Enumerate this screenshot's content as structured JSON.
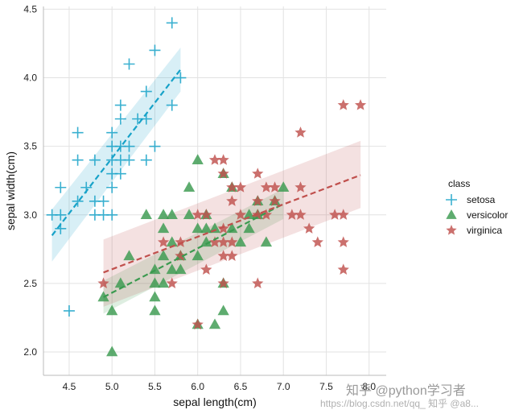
{
  "chart_data": {
    "type": "scatter",
    "xlabel": "sepal length(cm)",
    "ylabel": "sepal width(cm)",
    "xlim": [
      4.2,
      8.2
    ],
    "ylim": [
      1.83,
      4.52
    ],
    "xticks": [
      "4.5",
      "5.0",
      "5.5",
      "6.0",
      "6.5",
      "7.0",
      "7.5",
      "8.0"
    ],
    "yticks": [
      "2.0",
      "2.5",
      "3.0",
      "3.5",
      "4.0",
      "4.5"
    ],
    "grid": true,
    "legend": {
      "title": "class",
      "placement": "right"
    },
    "series": [
      {
        "name": "setosa",
        "marker": "plus",
        "color": "#17a2c8",
        "regression": {
          "x": [
            4.3,
            5.8
          ],
          "y": [
            2.85,
            4.06
          ],
          "ci_low": [
            2.66,
            3.9
          ],
          "ci_high": [
            3.04,
            4.22
          ]
        },
        "points": [
          [
            4.3,
            3.0
          ],
          [
            4.4,
            2.9
          ],
          [
            4.4,
            3.0
          ],
          [
            4.4,
            3.2
          ],
          [
            4.5,
            2.3
          ],
          [
            4.6,
            3.1
          ],
          [
            4.6,
            3.4
          ],
          [
            4.6,
            3.6
          ],
          [
            4.7,
            3.2
          ],
          [
            4.8,
            3.0
          ],
          [
            4.8,
            3.1
          ],
          [
            4.8,
            3.4
          ],
          [
            4.9,
            3.0
          ],
          [
            4.9,
            3.1
          ],
          [
            5.0,
            3.0
          ],
          [
            5.0,
            3.2
          ],
          [
            5.0,
            3.3
          ],
          [
            5.0,
            3.4
          ],
          [
            5.0,
            3.5
          ],
          [
            5.0,
            3.6
          ],
          [
            5.1,
            3.3
          ],
          [
            5.1,
            3.4
          ],
          [
            5.1,
            3.5
          ],
          [
            5.1,
            3.7
          ],
          [
            5.1,
            3.8
          ],
          [
            5.2,
            3.4
          ],
          [
            5.2,
            3.5
          ],
          [
            5.2,
            4.1
          ],
          [
            5.3,
            3.7
          ],
          [
            5.4,
            3.4
          ],
          [
            5.4,
            3.7
          ],
          [
            5.4,
            3.9
          ],
          [
            5.5,
            3.5
          ],
          [
            5.5,
            4.2
          ],
          [
            5.7,
            3.8
          ],
          [
            5.7,
            4.4
          ],
          [
            5.8,
            4.0
          ]
        ]
      },
      {
        "name": "versicolor",
        "marker": "triangle",
        "color": "#3a9a4f",
        "regression": {
          "x": [
            4.9,
            7.0
          ],
          "y": [
            2.4,
            3.08
          ],
          "ci_low": [
            2.28,
            2.97
          ],
          "ci_high": [
            2.52,
            3.19
          ]
        },
        "points": [
          [
            4.9,
            2.4
          ],
          [
            5.0,
            2.0
          ],
          [
            5.0,
            2.3
          ],
          [
            5.1,
            2.5
          ],
          [
            5.2,
            2.7
          ],
          [
            5.4,
            3.0
          ],
          [
            5.5,
            2.3
          ],
          [
            5.5,
            2.4
          ],
          [
            5.5,
            2.5
          ],
          [
            5.5,
            2.6
          ],
          [
            5.6,
            2.5
          ],
          [
            5.6,
            2.7
          ],
          [
            5.6,
            2.9
          ],
          [
            5.6,
            3.0
          ],
          [
            5.7,
            2.6
          ],
          [
            5.7,
            2.8
          ],
          [
            5.7,
            3.0
          ],
          [
            5.8,
            2.6
          ],
          [
            5.8,
            2.7
          ],
          [
            5.9,
            3.0
          ],
          [
            5.9,
            3.2
          ],
          [
            6.0,
            2.2
          ],
          [
            6.0,
            2.7
          ],
          [
            6.0,
            2.9
          ],
          [
            6.0,
            3.4
          ],
          [
            6.1,
            2.8
          ],
          [
            6.1,
            2.9
          ],
          [
            6.1,
            3.0
          ],
          [
            6.2,
            2.2
          ],
          [
            6.2,
            2.9
          ],
          [
            6.3,
            2.3
          ],
          [
            6.3,
            2.5
          ],
          [
            6.3,
            3.3
          ],
          [
            6.4,
            2.9
          ],
          [
            6.4,
            3.2
          ],
          [
            6.5,
            2.8
          ],
          [
            6.6,
            2.9
          ],
          [
            6.6,
            3.0
          ],
          [
            6.7,
            3.0
          ],
          [
            6.7,
            3.1
          ],
          [
            6.8,
            2.8
          ],
          [
            6.9,
            3.1
          ],
          [
            7.0,
            3.2
          ]
        ]
      },
      {
        "name": "virginica",
        "marker": "star",
        "color": "#c0504d",
        "regression": {
          "x": [
            4.9,
            7.9
          ],
          "y": [
            2.58,
            3.29
          ],
          "ci_low": [
            2.33,
            3.05
          ],
          "ci_high": [
            2.82,
            3.54
          ]
        },
        "points": [
          [
            4.9,
            2.5
          ],
          [
            5.6,
            2.8
          ],
          [
            5.7,
            2.5
          ],
          [
            5.8,
            2.7
          ],
          [
            5.8,
            2.8
          ],
          [
            6.0,
            2.2
          ],
          [
            6.0,
            3.0
          ],
          [
            6.1,
            2.6
          ],
          [
            6.1,
            3.0
          ],
          [
            6.2,
            2.8
          ],
          [
            6.2,
            3.4
          ],
          [
            6.3,
            2.5
          ],
          [
            6.3,
            2.7
          ],
          [
            6.3,
            2.8
          ],
          [
            6.3,
            2.9
          ],
          [
            6.3,
            3.3
          ],
          [
            6.3,
            3.4
          ],
          [
            6.4,
            2.7
          ],
          [
            6.4,
            2.8
          ],
          [
            6.4,
            3.1
          ],
          [
            6.4,
            3.2
          ],
          [
            6.5,
            3.0
          ],
          [
            6.5,
            3.2
          ],
          [
            6.7,
            2.5
          ],
          [
            6.7,
            3.0
          ],
          [
            6.7,
            3.1
          ],
          [
            6.7,
            3.3
          ],
          [
            6.8,
            3.0
          ],
          [
            6.8,
            3.2
          ],
          [
            6.9,
            3.1
          ],
          [
            6.9,
            3.2
          ],
          [
            7.1,
            3.0
          ],
          [
            7.2,
            3.0
          ],
          [
            7.2,
            3.2
          ],
          [
            7.2,
            3.6
          ],
          [
            7.3,
            2.9
          ],
          [
            7.4,
            2.8
          ],
          [
            7.6,
            3.0
          ],
          [
            7.7,
            2.6
          ],
          [
            7.7,
            2.8
          ],
          [
            7.7,
            3.0
          ],
          [
            7.7,
            3.8
          ],
          [
            7.9,
            3.8
          ]
        ]
      }
    ]
  },
  "watermark": {
    "line1": "知乎 @python学习者",
    "line2": "https://blog.csdn.net/qq_  知乎 @a8..."
  }
}
